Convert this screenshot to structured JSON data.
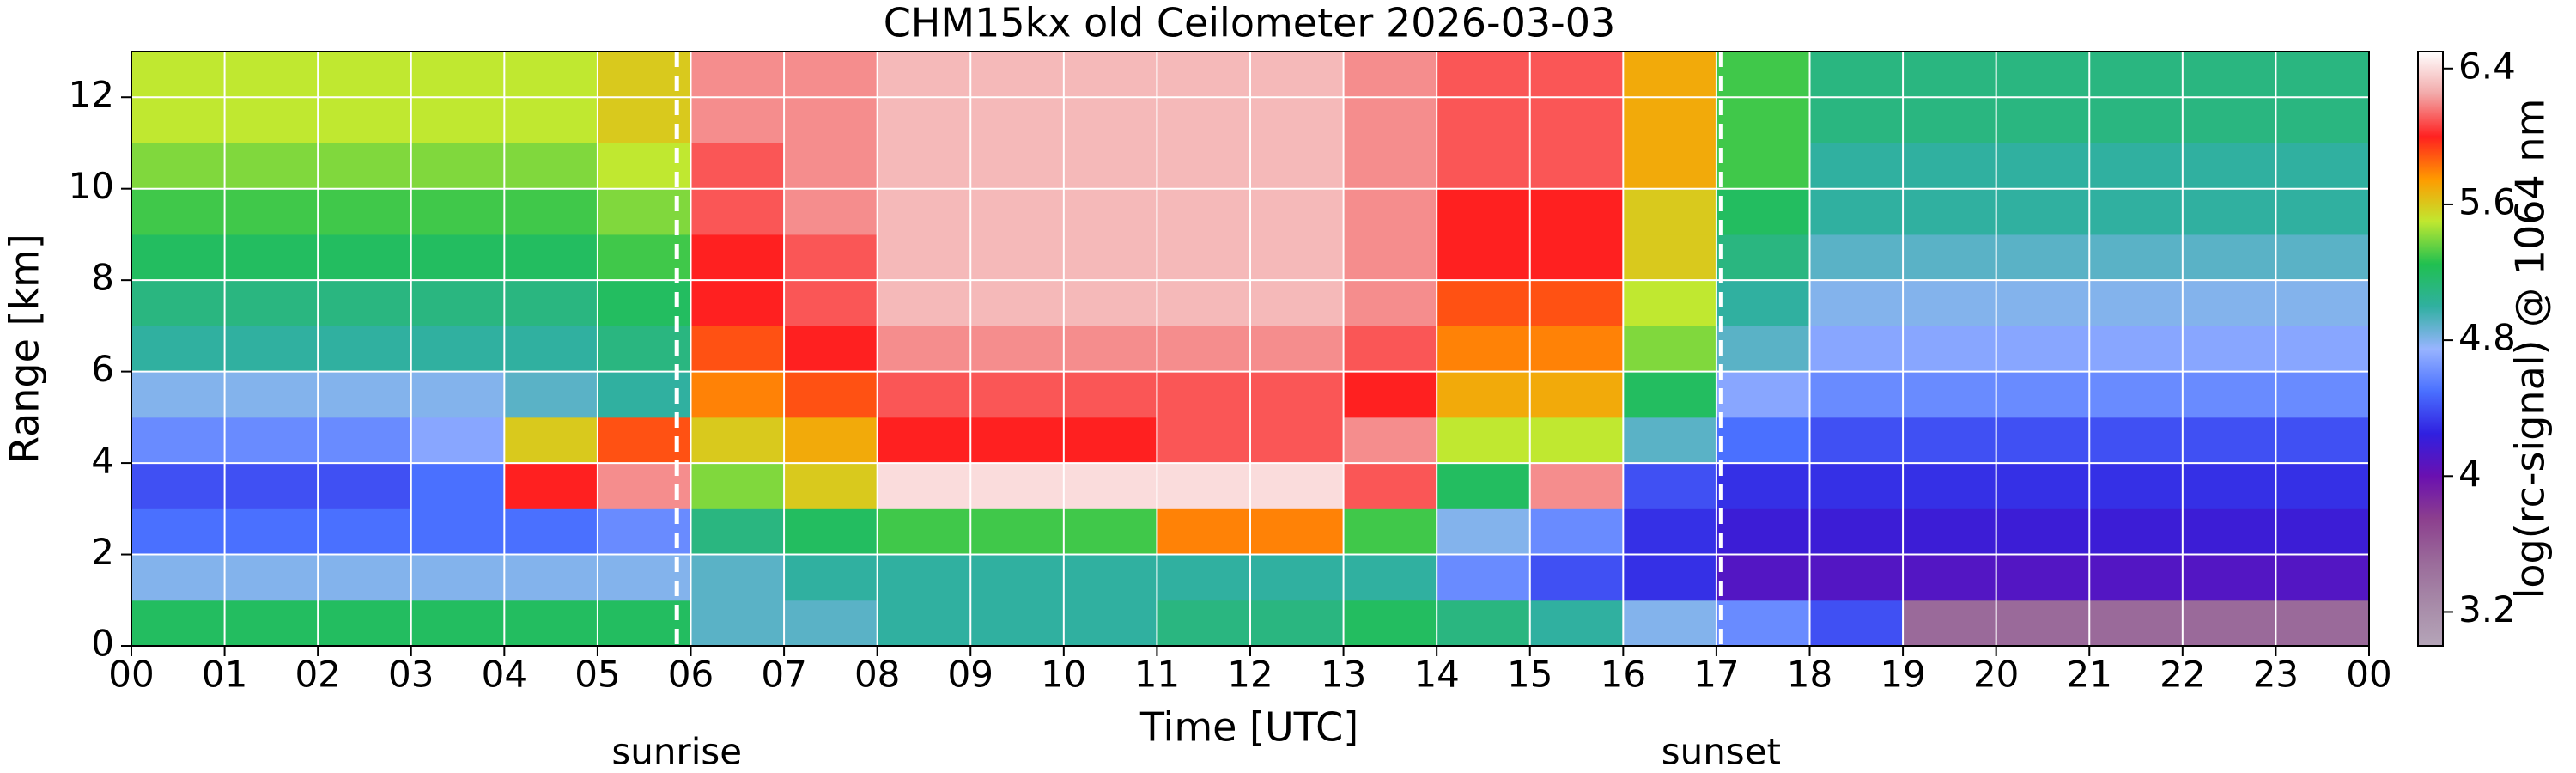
{
  "chart_data": {
    "type": "heatmap",
    "title": "CHM15kx old Ceilometer 2026-03-03",
    "xlabel": "Time [UTC]",
    "ylabel": "Range [km]",
    "colorbar_label": "log(rc-signal) @ 1064 nm",
    "xlim": [
      0,
      24
    ],
    "ylim": [
      0,
      13
    ],
    "clim": [
      3.0,
      6.5
    ],
    "x_edges": [
      0,
      1,
      2,
      3,
      4,
      5,
      6,
      7,
      8,
      9,
      10,
      11,
      12,
      13,
      14,
      15,
      16,
      17,
      18,
      19,
      20,
      21,
      22,
      23,
      24
    ],
    "y_edges": [
      0,
      1,
      2,
      3,
      4,
      5,
      6,
      7,
      8,
      9,
      10,
      11,
      12,
      13
    ],
    "z": [
      [
        5.2,
        4.8,
        4.5,
        4.4,
        4.6,
        4.8,
        5.0,
        5.1,
        5.2,
        5.3,
        5.4,
        5.5,
        5.5
      ],
      [
        5.2,
        4.8,
        4.5,
        4.4,
        4.6,
        4.8,
        5.0,
        5.1,
        5.2,
        5.3,
        5.4,
        5.5,
        5.5
      ],
      [
        5.2,
        4.8,
        4.5,
        4.4,
        4.6,
        4.8,
        5.0,
        5.1,
        5.2,
        5.3,
        5.4,
        5.5,
        5.5
      ],
      [
        5.2,
        4.8,
        4.5,
        4.5,
        4.7,
        4.8,
        5.0,
        5.1,
        5.2,
        5.3,
        5.4,
        5.5,
        5.5
      ],
      [
        5.2,
        4.8,
        4.5,
        6.0,
        5.6,
        4.9,
        5.0,
        5.1,
        5.2,
        5.3,
        5.4,
        5.5,
        5.5
      ],
      [
        5.2,
        4.8,
        4.6,
        6.2,
        5.9,
        5.0,
        5.1,
        5.2,
        5.3,
        5.4,
        5.5,
        5.6,
        5.6
      ],
      [
        4.9,
        4.9,
        5.1,
        5.4,
        5.6,
        5.8,
        5.9,
        6.0,
        6.0,
        6.1,
        6.1,
        6.2,
        6.2
      ],
      [
        4.9,
        5.0,
        5.2,
        5.6,
        5.7,
        5.9,
        6.0,
        6.1,
        6.1,
        6.2,
        6.2,
        6.2,
        6.2
      ],
      [
        5.0,
        5.0,
        5.3,
        6.4,
        6.0,
        6.1,
        6.2,
        6.3,
        6.3,
        6.3,
        6.3,
        6.3,
        6.3
      ],
      [
        5.0,
        5.0,
        5.3,
        6.4,
        6.0,
        6.1,
        6.2,
        6.3,
        6.3,
        6.3,
        6.3,
        6.3,
        6.3
      ],
      [
        5.0,
        5.0,
        5.3,
        6.4,
        6.0,
        6.1,
        6.2,
        6.3,
        6.3,
        6.3,
        6.3,
        6.3,
        6.3
      ],
      [
        5.1,
        5.0,
        5.8,
        6.4,
        6.1,
        6.1,
        6.2,
        6.3,
        6.3,
        6.3,
        6.3,
        6.3,
        6.3
      ],
      [
        5.1,
        5.0,
        5.8,
        6.4,
        6.1,
        6.1,
        6.2,
        6.3,
        6.3,
        6.3,
        6.3,
        6.3,
        6.3
      ],
      [
        5.2,
        5.0,
        5.3,
        6.1,
        6.2,
        6.0,
        6.1,
        6.2,
        6.2,
        6.2,
        6.2,
        6.2,
        6.2
      ],
      [
        5.1,
        4.6,
        4.8,
        5.2,
        5.5,
        5.7,
        5.8,
        5.9,
        6.0,
        6.0,
        6.1,
        6.1,
        6.1
      ],
      [
        5.0,
        4.4,
        4.6,
        6.2,
        5.5,
        5.7,
        5.8,
        5.9,
        6.0,
        6.0,
        6.1,
        6.1,
        6.1
      ],
      [
        4.8,
        4.3,
        4.3,
        4.4,
        4.9,
        5.2,
        5.4,
        5.5,
        5.6,
        5.6,
        5.7,
        5.7,
        5.7
      ],
      [
        4.6,
        4.1,
        4.2,
        4.3,
        4.5,
        4.7,
        4.9,
        5.0,
        5.1,
        5.2,
        5.3,
        5.3,
        5.3
      ],
      [
        4.4,
        4.1,
        4.2,
        4.3,
        4.4,
        4.6,
        4.7,
        4.8,
        4.9,
        5.0,
        5.0,
        5.1,
        5.1
      ],
      [
        3.5,
        4.1,
        4.2,
        4.3,
        4.4,
        4.6,
        4.7,
        4.8,
        4.9,
        5.0,
        5.0,
        5.1,
        5.1
      ],
      [
        3.5,
        4.1,
        4.2,
        4.3,
        4.4,
        4.6,
        4.7,
        4.8,
        4.9,
        5.0,
        5.0,
        5.1,
        5.1
      ],
      [
        3.5,
        4.1,
        4.2,
        4.3,
        4.4,
        4.6,
        4.7,
        4.8,
        4.9,
        5.0,
        5.0,
        5.1,
        5.1
      ],
      [
        3.5,
        4.1,
        4.2,
        4.3,
        4.4,
        4.6,
        4.7,
        4.8,
        4.9,
        5.0,
        5.0,
        5.1,
        5.1
      ],
      [
        3.5,
        4.1,
        4.2,
        4.3,
        4.4,
        4.6,
        4.7,
        4.8,
        4.9,
        5.0,
        5.0,
        5.1,
        5.1
      ]
    ],
    "colormap": [
      "#b5a5b8",
      "#a78aa8",
      "#9a6a9a",
      "#8c3f8e",
      "#6a10b0",
      "#3020e0",
      "#4a70ff",
      "#98b4ff",
      "#30b0a0",
      "#20c050",
      "#c0e830",
      "#ff9a00",
      "#ff2020",
      "#f2a8a8",
      "#ffffff"
    ],
    "xticks": [
      {
        "value": 0,
        "label": "00"
      },
      {
        "value": 1,
        "label": "01"
      },
      {
        "value": 2,
        "label": "02"
      },
      {
        "value": 3,
        "label": "03"
      },
      {
        "value": 4,
        "label": "04"
      },
      {
        "value": 5,
        "label": "05"
      },
      {
        "value": 6,
        "label": "06"
      },
      {
        "value": 7,
        "label": "07"
      },
      {
        "value": 8,
        "label": "08"
      },
      {
        "value": 9,
        "label": "09"
      },
      {
        "value": 10,
        "label": "10"
      },
      {
        "value": 11,
        "label": "11"
      },
      {
        "value": 12,
        "label": "12"
      },
      {
        "value": 13,
        "label": "13"
      },
      {
        "value": 14,
        "label": "14"
      },
      {
        "value": 15,
        "label": "15"
      },
      {
        "value": 16,
        "label": "16"
      },
      {
        "value": 17,
        "label": "17"
      },
      {
        "value": 18,
        "label": "18"
      },
      {
        "value": 19,
        "label": "19"
      },
      {
        "value": 20,
        "label": "20"
      },
      {
        "value": 21,
        "label": "21"
      },
      {
        "value": 22,
        "label": "22"
      },
      {
        "value": 23,
        "label": "23"
      },
      {
        "value": 24,
        "label": "00"
      }
    ],
    "yticks": [
      0,
      2,
      4,
      6,
      8,
      10,
      12
    ],
    "cticks": [
      3.2,
      4,
      4.8,
      5.6,
      6.4
    ],
    "grid": true,
    "annotations": [
      {
        "label": "sunrise",
        "x": 5.85
      },
      {
        "label": "sunset",
        "x": 17.05
      }
    ]
  }
}
